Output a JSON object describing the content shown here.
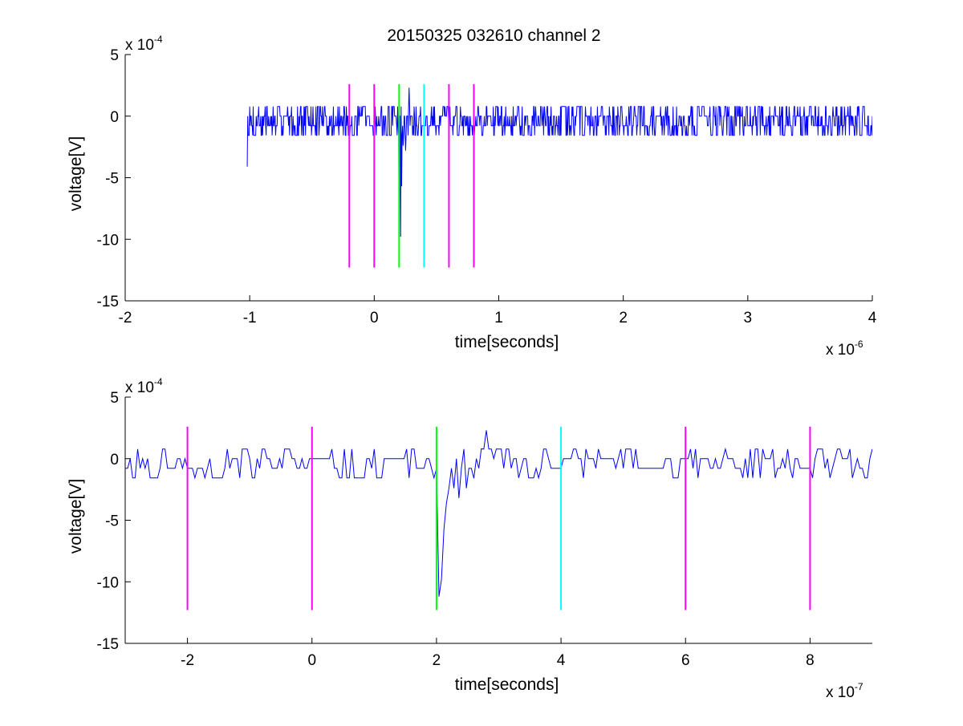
{
  "chart_data": [
    {
      "type": "line",
      "title": "20150325 032610 channel 2",
      "xlabel": "time[seconds]",
      "ylabel": "voltage[V]",
      "x_multiplier": {
        "base": "x 10",
        "exponent": "-6"
      },
      "y_multiplier": {
        "base": "x 10",
        "exponent": "-4"
      },
      "xlim": [
        -2e-06,
        4e-06
      ],
      "ylim": [
        -0.0015,
        0.0005
      ],
      "xticks": [
        {
          "value": -2e-06,
          "label": "-2"
        },
        {
          "value": -1e-06,
          "label": "-1"
        },
        {
          "value": 0,
          "label": "0"
        },
        {
          "value": 1e-06,
          "label": "1"
        },
        {
          "value": 2e-06,
          "label": "2"
        },
        {
          "value": 3e-06,
          "label": "3"
        },
        {
          "value": 4e-06,
          "label": "4"
        }
      ],
      "yticks": [
        {
          "value": 0.0005,
          "label": "5"
        },
        {
          "value": 0,
          "label": "0"
        },
        {
          "value": -0.0005,
          "label": "-5"
        },
        {
          "value": -0.001,
          "label": "-10"
        },
        {
          "value": -0.0015,
          "label": "-15"
        }
      ],
      "grid": false,
      "trace": {
        "color": "#0000ff",
        "x_start": -1.02e-06,
        "x_end": 4e-06,
        "step": 4e-09,
        "baseline": -4e-05,
        "noise_amplitude": 0.00014,
        "quantum": 7.8e-05,
        "seed": 7,
        "events": [
          {
            "x": 2e-07,
            "y": -0.00112
          },
          {
            "x": 2.1e-07,
            "y": -0.00098
          },
          {
            "x": 2.2e-07,
            "y": -0.00057
          },
          {
            "x": 2.3e-07,
            "y": -0.00024
          },
          {
            "x": 2.5e-07,
            "y": -0.00028
          },
          {
            "x": 2.8e-07,
            "y": 0.00023
          },
          {
            "x": -1.02e-06,
            "y": -0.00041
          }
        ]
      },
      "markers": [
        {
          "x": -2e-07,
          "y_top": 0.00026,
          "y_bottom": -0.00123,
          "color": "#ff00ff"
        },
        {
          "x": 0,
          "y_top": 0.00026,
          "y_bottom": -0.00123,
          "color": "#ff00ff"
        },
        {
          "x": 2e-07,
          "y_top": 0.00026,
          "y_bottom": -0.00123,
          "color": "#00ff00"
        },
        {
          "x": 4e-07,
          "y_top": 0.00026,
          "y_bottom": -0.00123,
          "color": "#00ffff"
        },
        {
          "x": 6e-07,
          "y_top": 0.00026,
          "y_bottom": -0.00123,
          "color": "#ff00ff"
        },
        {
          "x": 8e-07,
          "y_top": 0.00026,
          "y_bottom": -0.00123,
          "color": "#ff00ff"
        }
      ]
    },
    {
      "type": "line",
      "title": "",
      "xlabel": "time[seconds]",
      "ylabel": "voltage[V]",
      "x_multiplier": {
        "base": "x 10",
        "exponent": "-7"
      },
      "y_multiplier": {
        "base": "x 10",
        "exponent": "-4"
      },
      "xlim": [
        -3e-07,
        9e-07
      ],
      "ylim": [
        -0.0015,
        0.0005
      ],
      "xticks": [
        {
          "value": -2e-07,
          "label": "-2"
        },
        {
          "value": 0,
          "label": "0"
        },
        {
          "value": 2e-07,
          "label": "2"
        },
        {
          "value": 4e-07,
          "label": "4"
        },
        {
          "value": 6e-07,
          "label": "6"
        },
        {
          "value": 8e-07,
          "label": "8"
        }
      ],
      "yticks": [
        {
          "value": 0.0005,
          "label": "5"
        },
        {
          "value": 0,
          "label": "0"
        },
        {
          "value": -0.0005,
          "label": "-5"
        },
        {
          "value": -0.001,
          "label": "-10"
        },
        {
          "value": -0.0015,
          "label": "-15"
        }
      ],
      "grid": false,
      "trace": {
        "color": "#0000ff",
        "x_start": -3e-07,
        "x_end": 9e-07,
        "step": 4e-09,
        "baseline": -4e-05,
        "noise_amplitude": 0.00014,
        "quantum": 7.8e-05,
        "seed": 11,
        "events": [
          {
            "x": 2e-07,
            "y": -8e-05
          },
          {
            "x": 2.04e-07,
            "y": -0.00112
          },
          {
            "x": 2.08e-07,
            "y": -0.00098
          },
          {
            "x": 2.12e-07,
            "y": -0.00057
          },
          {
            "x": 2.16e-07,
            "y": -0.00036
          },
          {
            "x": 2.2e-07,
            "y": -0.00024
          },
          {
            "x": 2.28e-07,
            "y": -0.00024
          },
          {
            "x": 2.36e-07,
            "y": -0.00032
          },
          {
            "x": 2.48e-07,
            "y": -0.00024
          },
          {
            "x": 2.6e-07,
            "y": -0.00016
          },
          {
            "x": 2.72e-07,
            "y": 8e-05
          },
          {
            "x": 2.8e-07,
            "y": 0.00023
          }
        ]
      },
      "markers": [
        {
          "x": -2e-07,
          "y_top": 0.00026,
          "y_bottom": -0.00123,
          "color": "#ff00ff"
        },
        {
          "x": 0,
          "y_top": 0.00026,
          "y_bottom": -0.00123,
          "color": "#ff00ff"
        },
        {
          "x": 2e-07,
          "y_top": 0.00026,
          "y_bottom": -0.00123,
          "color": "#00ff00"
        },
        {
          "x": 4e-07,
          "y_top": 0.00026,
          "y_bottom": -0.00123,
          "color": "#00ffff"
        },
        {
          "x": 6e-07,
          "y_top": 0.00026,
          "y_bottom": -0.00123,
          "color": "#ff00ff"
        },
        {
          "x": 8e-07,
          "y_top": 0.00026,
          "y_bottom": -0.00123,
          "color": "#ff00ff"
        }
      ]
    }
  ]
}
